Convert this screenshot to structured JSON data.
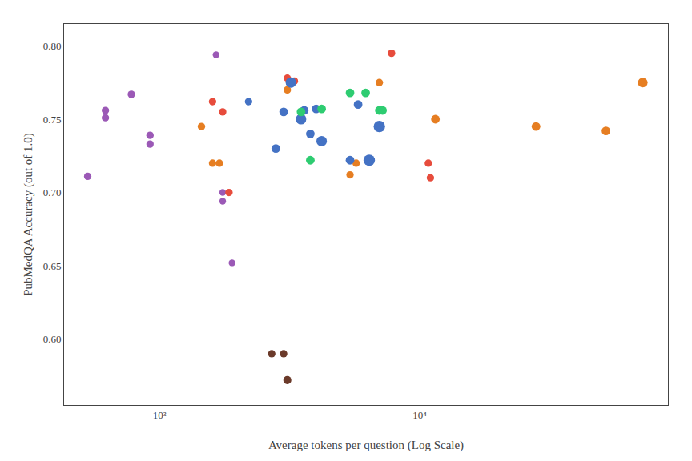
{
  "chart_data": {
    "type": "scatter",
    "xlabel": "Average tokens per question (Log Scale)",
    "ylabel": "PubMedQA Accuracy (out of 1.0)",
    "log": "x",
    "grid": false,
    "xlim": [
      430,
      90000
    ],
    "ylim": [
      0.555,
      0.815
    ],
    "xticks": [
      {
        "value": 1000,
        "label": "10³"
      },
      {
        "value": 10000,
        "label": "10⁴"
      }
    ],
    "yticks": [
      {
        "value": 0.6,
        "label": "0.60"
      },
      0.65,
      {
        "value": 0.7,
        "label": "0.70"
      },
      0.75,
      {
        "value": 0.8,
        "label": "0.80"
      }
    ],
    "x": [
      620,
      620,
      530,
      780,
      920,
      920,
      1650,
      1750,
      1750,
      1900,
      1450,
      1600,
      1700,
      3100,
      5400,
      5700,
      7000,
      11500,
      28000,
      52000,
      72000,
      1600,
      1750,
      1850,
      3100,
      3300,
      7800,
      10800,
      11000,
      2200,
      2800,
      3000,
      3200,
      3500,
      3600,
      3800,
      4000,
      4200,
      5400,
      5800,
      6400,
      7000,
      3500,
      3800,
      4200,
      5400,
      6200,
      7000,
      7200,
      2700,
      3000,
      3100
    ],
    "values": [
      0.756,
      0.751,
      0.711,
      0.767,
      0.739,
      0.733,
      0.794,
      0.7,
      0.694,
      0.652,
      0.745,
      0.72,
      0.72,
      0.77,
      0.712,
      0.72,
      0.775,
      0.75,
      0.745,
      0.742,
      0.775,
      0.762,
      0.755,
      0.7,
      0.778,
      0.776,
      0.795,
      0.72,
      0.71,
      0.762,
      0.73,
      0.755,
      0.775,
      0.75,
      0.756,
      0.74,
      0.757,
      0.735,
      0.722,
      0.76,
      0.722,
      0.745,
      0.755,
      0.722,
      0.757,
      0.768,
      0.768,
      0.756,
      0.756,
      0.59,
      0.59,
      0.572
    ],
    "colors": [
      "#9B59B6",
      "#9B59B6",
      "#9B59B6",
      "#9B59B6",
      "#9B59B6",
      "#9B59B6",
      "#9B59B6",
      "#9B59B6",
      "#9B59B6",
      "#9B59B6",
      "#E67E22",
      "#E67E22",
      "#E67E22",
      "#E67E22",
      "#E67E22",
      "#E67E22",
      "#E67E22",
      "#E67E22",
      "#E67E22",
      "#E67E22",
      "#E67E22",
      "#E74C3C",
      "#E74C3C",
      "#E74C3C",
      "#E74C3C",
      "#E74C3C",
      "#E74C3C",
      "#E74C3C",
      "#E74C3C",
      "#4472C4",
      "#4472C4",
      "#4472C4",
      "#4472C4",
      "#4472C4",
      "#4472C4",
      "#4472C4",
      "#4472C4",
      "#4472C4",
      "#4472C4",
      "#4472C4",
      "#4472C4",
      "#4472C4",
      "#2ECC71",
      "#2ECC71",
      "#2ECC71",
      "#2ECC71",
      "#2ECC71",
      "#2ECC71",
      "#2ECC71",
      "#6B3A2A",
      "#6B3A2A",
      "#6B3A2A"
    ],
    "sizes": [
      55,
      55,
      55,
      55,
      55,
      55,
      45,
      45,
      45,
      45,
      55,
      55,
      55,
      55,
      55,
      55,
      55,
      75,
      75,
      75,
      95,
      55,
      55,
      55,
      55,
      55,
      55,
      55,
      55,
      55,
      75,
      75,
      110,
      110,
      75,
      75,
      75,
      110,
      75,
      75,
      130,
      130,
      75,
      75,
      75,
      75,
      75,
      75,
      75,
      55,
      55,
      65
    ]
  }
}
